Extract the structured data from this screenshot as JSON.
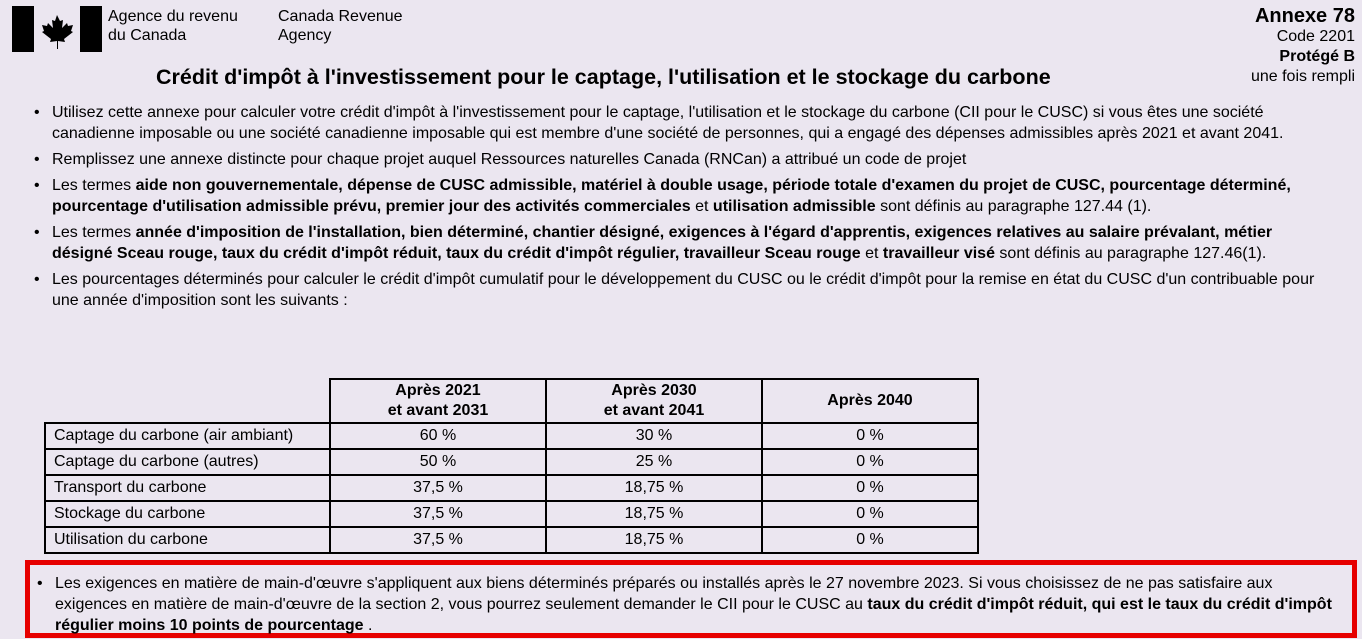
{
  "header": {
    "agency_fr_line1": "Agence du revenu",
    "agency_fr_line2": "du Canada",
    "agency_en_line1": "Canada Revenue",
    "agency_en_line2": "Agency",
    "annexe": "Annexe 78",
    "code": "Code 2201",
    "protection": "Protégé B",
    "protection_note": "une fois rempli",
    "title": "Crédit d'impôt à l'investissement pour le captage, l'utilisation et le stockage du carbone"
  },
  "bullets": [
    [
      {
        "t": "Utilisez cette annexe pour calculer votre crédit d'impôt à l'investissement pour le captage, l'utilisation et le stockage du carbone (CII pour le CUSC) si vous êtes une société canadienne imposable ou une société canadienne imposable qui est membre d'une société de personnes, qui a engagé des dépenses admissibles après 2021 et avant 2041."
      }
    ],
    [
      {
        "t": "Remplissez une annexe distincte pour chaque projet auquel Ressources naturelles Canada (RNCan) a attribué un code de projet"
      }
    ],
    [
      {
        "t": "Les termes "
      },
      {
        "t": "aide non gouvernementale, dépense de CUSC admissible, matériel à double usage, période totale d'examen du projet de CUSC, pourcentage déterminé, pourcentage d'utilisation admissible prévu, premier jour des activités commerciales",
        "b": true
      },
      {
        "t": " et "
      },
      {
        "t": "utilisation admissible",
        "b": true
      },
      {
        "t": " sont définis au paragraphe 127.44 (1)."
      }
    ],
    [
      {
        "t": "Les termes "
      },
      {
        "t": "année d'imposition de l'installation, bien déterminé, chantier désigné, exigences à l'égard d'apprentis, exigences relatives au salaire prévalant, métier désigné Sceau rouge, taux du crédit d'impôt réduit, taux du crédit d'impôt régulier, travailleur Sceau rouge",
        "b": true
      },
      {
        "t": " et "
      },
      {
        "t": "travailleur visé",
        "b": true
      },
      {
        "t": " sont définis au paragraphe 127.46(1)."
      }
    ],
    [
      {
        "t": "Les pourcentages déterminés pour calculer le crédit d'impôt cumulatif pour le développement du CUSC ou le crédit d'impôt pour la remise en état du CUSC d'un contribuable pour une année d'imposition sont les suivants :"
      }
    ]
  ],
  "table": {
    "headers": [
      [
        "Après 2021",
        "et avant 2031"
      ],
      [
        "Après 2030",
        "et avant 2041"
      ],
      [
        "Après 2040"
      ]
    ],
    "rows": [
      [
        "Captage du carbone (air ambiant)",
        "60 %",
        "30 %",
        "0 %"
      ],
      [
        "Captage du carbone (autres)",
        "50 %",
        "25 %",
        "0 %"
      ],
      [
        "Transport du carbone",
        "37,5 %",
        "18,75 %",
        "0 %"
      ],
      [
        "Stockage du carbone",
        "37,5 %",
        "18,75 %",
        "0 %"
      ],
      [
        "Utilisation du carbone",
        "37,5 %",
        "18,75 %",
        "0 %"
      ]
    ]
  },
  "notice": [
    {
      "t": "Les exigences en matière de main-d'œuvre s'appliquent aux biens déterminés préparés ou installés après le 27 novembre 2023. Si vous choisissez de ne pas satisfaire aux exigences en matière de main-d'œuvre de la section 2, vous pourrez seulement demander le CII pour le CUSC au "
    },
    {
      "t": "taux du crédit d'impôt réduit, qui est le taux du crédit d'impôt régulier moins 10 points de pourcentage",
      "b": true
    },
    {
      "t": " ."
    }
  ],
  "colors": {
    "highlight_border": "#e60000",
    "background": "#ebe6f0"
  }
}
